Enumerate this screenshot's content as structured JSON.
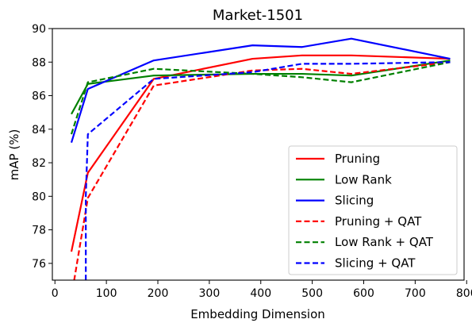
{
  "chart_data": {
    "type": "line",
    "title": "Market-1501",
    "xlabel": "Embedding Dimension",
    "ylabel": "mAP (%)",
    "xlim": [
      -5,
      795
    ],
    "ylim": [
      75,
      90
    ],
    "xticks": [
      0,
      100,
      200,
      300,
      400,
      500,
      600,
      700,
      800
    ],
    "yticks": [
      76,
      78,
      80,
      82,
      84,
      86,
      88,
      90
    ],
    "grid": false,
    "legend_position": "lower-right",
    "series": [
      {
        "name": "Pruning",
        "color": "#ff0000",
        "dash": "solid",
        "x": [
          32,
          64,
          192,
          384,
          480,
          576,
          768
        ],
        "y": [
          76.7,
          81.4,
          87.0,
          88.2,
          88.4,
          88.4,
          88.2
        ]
      },
      {
        "name": "Low Rank",
        "color": "#008000",
        "dash": "solid",
        "x": [
          32,
          64,
          192,
          384,
          480,
          576,
          768
        ],
        "y": [
          84.9,
          86.7,
          87.2,
          87.3,
          87.3,
          87.2,
          88.1
        ]
      },
      {
        "name": "Slicing",
        "color": "#0000ff",
        "dash": "solid",
        "x": [
          32,
          64,
          192,
          384,
          480,
          576,
          768
        ],
        "y": [
          83.2,
          86.4,
          88.1,
          89.0,
          88.9,
          89.4,
          88.2
        ]
      },
      {
        "name": "Pruning + QAT",
        "color": "#ff0000",
        "dash": "dashed",
        "x": [
          32,
          64,
          192,
          384,
          480,
          576,
          768
        ],
        "y": [
          74.0,
          79.9,
          86.6,
          87.5,
          87.6,
          87.3,
          88.0
        ]
      },
      {
        "name": "Low Rank + QAT",
        "color": "#008000",
        "dash": "dashed",
        "x": [
          32,
          64,
          192,
          384,
          480,
          576,
          768
        ],
        "y": [
          83.7,
          86.8,
          87.6,
          87.3,
          87.1,
          86.8,
          88.0
        ]
      },
      {
        "name": "Slicing + QAT",
        "color": "#0000ff",
        "dash": "dashed",
        "x": [
          60,
          60,
          64,
          192,
          384,
          480,
          576,
          768
        ],
        "y": [
          74.0,
          80.0,
          83.7,
          87.0,
          87.4,
          87.9,
          87.9,
          88.0
        ]
      }
    ]
  }
}
